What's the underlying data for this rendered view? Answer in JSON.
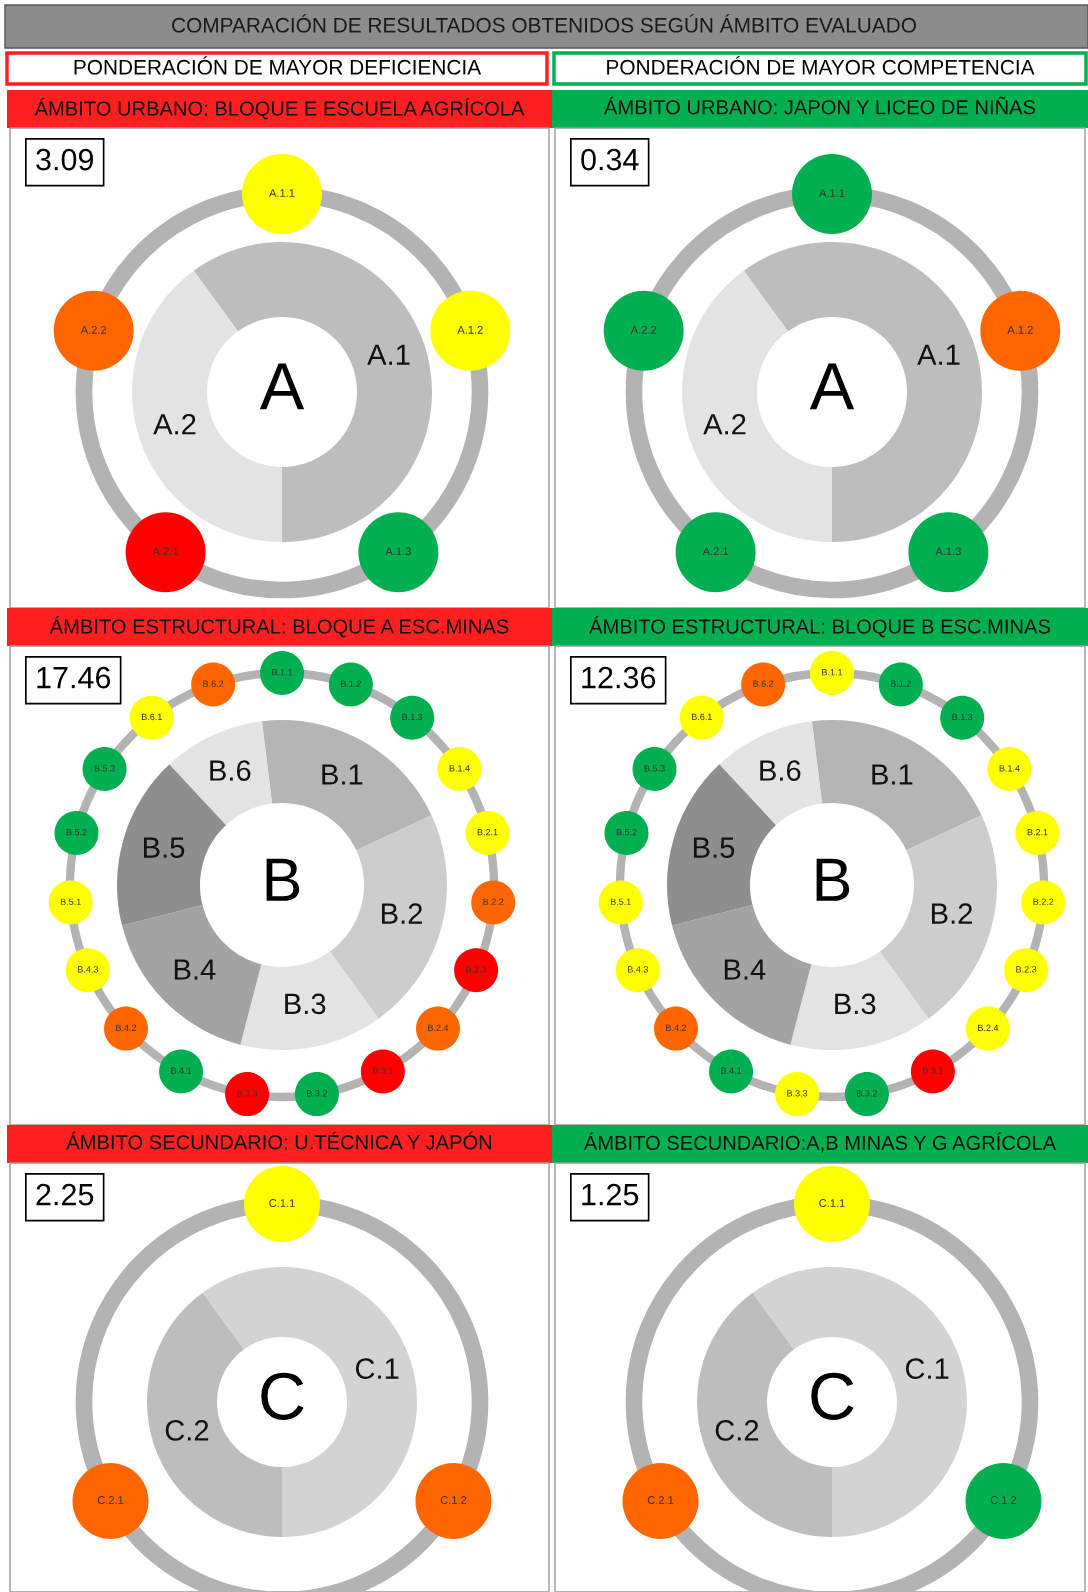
{
  "chart_data": [
    {
      "type": "other",
      "title": "COMPARACIÓN DE RESULTADOS OBTENIDOS SEGÚN ÁMBITO EVALUADO",
      "annotations": [
        "PONDERACIÓN DE MAYOR DEFICIENCIA",
        "PONDERACIÓN DE MAYOR COMPETENCIA"
      ],
      "colors": [
        "#ff1f1f",
        "#00b050"
      ]
    },
    {
      "type": "donut",
      "title": "ÁMBITO URBANO: BLOQUE E ESCUELA AGRÍCOLA",
      "categories": [
        "A.1",
        "A.2"
      ],
      "values": [
        60,
        40
      ],
      "colors": [
        "#bdbdbd",
        "#e3e3e3"
      ],
      "annotations": [
        "3.09",
        "A"
      ]
    },
    {
      "type": "other",
      "categories": [
        "A.1.1",
        "A.1.2",
        "A.1.3",
        "A.2.1",
        "A.2.2"
      ],
      "colors": [
        "#ffff00",
        "#ffff00",
        "#00b050",
        "#ff0000",
        "#ff6600"
      ]
    },
    {
      "type": "donut",
      "title": "ÁMBITO URBANO: JAPON Y LICEO DE NIÑAS",
      "categories": [
        "A.1",
        "A.2"
      ],
      "values": [
        60,
        40
      ],
      "colors": [
        "#bdbdbd",
        "#e3e3e3"
      ],
      "annotations": [
        "0.34",
        "A"
      ]
    },
    {
      "type": "other",
      "categories": [
        "A.1.1",
        "A.1.2",
        "A.1.3",
        "A.2.1",
        "A.2.2"
      ],
      "colors": [
        "#00b050",
        "#ff6600",
        "#00b050",
        "#00b050",
        "#00b050"
      ]
    },
    {
      "type": "donut",
      "title": "ÁMBITO ESTRUCTURAL: BLOQUE A ESC.MINAS",
      "categories": [
        "B.1",
        "B.2",
        "B.3",
        "B.4",
        "B.5",
        "B.6"
      ],
      "values": [
        20,
        22,
        14,
        17,
        17,
        10
      ],
      "colors": [
        "#b5b5b5",
        "#cdcdcd",
        "#e3e3e3",
        "#a3a3a3",
        "#8e8e8e",
        "#e3e3e3"
      ],
      "annotations": [
        "17.46",
        "B"
      ]
    },
    {
      "type": "other",
      "categories": [
        "B.1.1",
        "B.1.2",
        "B.1.3",
        "B.1.4",
        "B.2.1",
        "B.2.2",
        "B.2.3",
        "B.2.4",
        "B.3.1",
        "B.3.2",
        "B.3.3",
        "B.4.1",
        "B.4.2",
        "B.4.3",
        "B.5.1",
        "B.5.2",
        "B.5.3",
        "B.6.1",
        "B.6.2"
      ],
      "colors": [
        "#00b050",
        "#00b050",
        "#00b050",
        "#ffff00",
        "#ffff00",
        "#ff6600",
        "#ff0000",
        "#ff6600",
        "#ff0000",
        "#00b050",
        "#ff0000",
        "#00b050",
        "#ff6600",
        "#ffff00",
        "#ffff00",
        "#00b050",
        "#00b050",
        "#ffff00",
        "#ff6600"
      ]
    },
    {
      "type": "donut",
      "title": "ÁMBITO ESTRUCTURAL: BLOQUE B ESC.MINAS",
      "categories": [
        "B.1",
        "B.2",
        "B.3",
        "B.4",
        "B.5",
        "B.6"
      ],
      "values": [
        20,
        22,
        14,
        17,
        17,
        10
      ],
      "colors": [
        "#b5b5b5",
        "#cdcdcd",
        "#e3e3e3",
        "#a3a3a3",
        "#8e8e8e",
        "#e3e3e3"
      ],
      "annotations": [
        "12.36",
        "B"
      ]
    },
    {
      "type": "other",
      "categories": [
        "B.1.1",
        "B.1.2",
        "B.1.3",
        "B.1.4",
        "B.2.1",
        "B.2.2",
        "B.2.3",
        "B.2.4",
        "B.3.1",
        "B.3.2",
        "B.3.3",
        "B.4.1",
        "B.4.2",
        "B.4.3",
        "B.5.1",
        "B.5.2",
        "B.5.3",
        "B.6.1",
        "B.6.2"
      ],
      "colors": [
        "#ffff00",
        "#00b050",
        "#00b050",
        "#ffff00",
        "#ffff00",
        "#ffff00",
        "#ffff00",
        "#ffff00",
        "#ff0000",
        "#00b050",
        "#ffff00",
        "#00b050",
        "#ff6600",
        "#ffff00",
        "#ffff00",
        "#00b050",
        "#00b050",
        "#ffff00",
        "#ff6600"
      ]
    },
    {
      "type": "donut",
      "title": "ÁMBITO SECUNDARIO: U.TÉCNICA Y JAPÓN",
      "categories": [
        "C.1",
        "C.2"
      ],
      "values": [
        60,
        40
      ],
      "colors": [
        "#d3d3d3",
        "#bdbdbd"
      ],
      "annotations": [
        "2.25",
        "C"
      ]
    },
    {
      "type": "other",
      "categories": [
        "C.1.1",
        "C.1.2",
        "C.2.1"
      ],
      "colors": [
        "#ffff00",
        "#ff6600",
        "#ff6600"
      ]
    },
    {
      "type": "donut",
      "title": "ÁMBITO SECUNDARIO:A,B MINAS Y G AGRÍCOLA",
      "categories": [
        "C.1",
        "C.2"
      ],
      "values": [
        60,
        40
      ],
      "colors": [
        "#d3d3d3",
        "#bdbdbd"
      ],
      "annotations": [
        "1.25",
        "C"
      ]
    },
    {
      "type": "other",
      "categories": [
        "C.1.1",
        "C.1.2",
        "C.2.1"
      ],
      "colors": [
        "#ffff00",
        "#00b050",
        "#ff6600"
      ]
    }
  ]
}
